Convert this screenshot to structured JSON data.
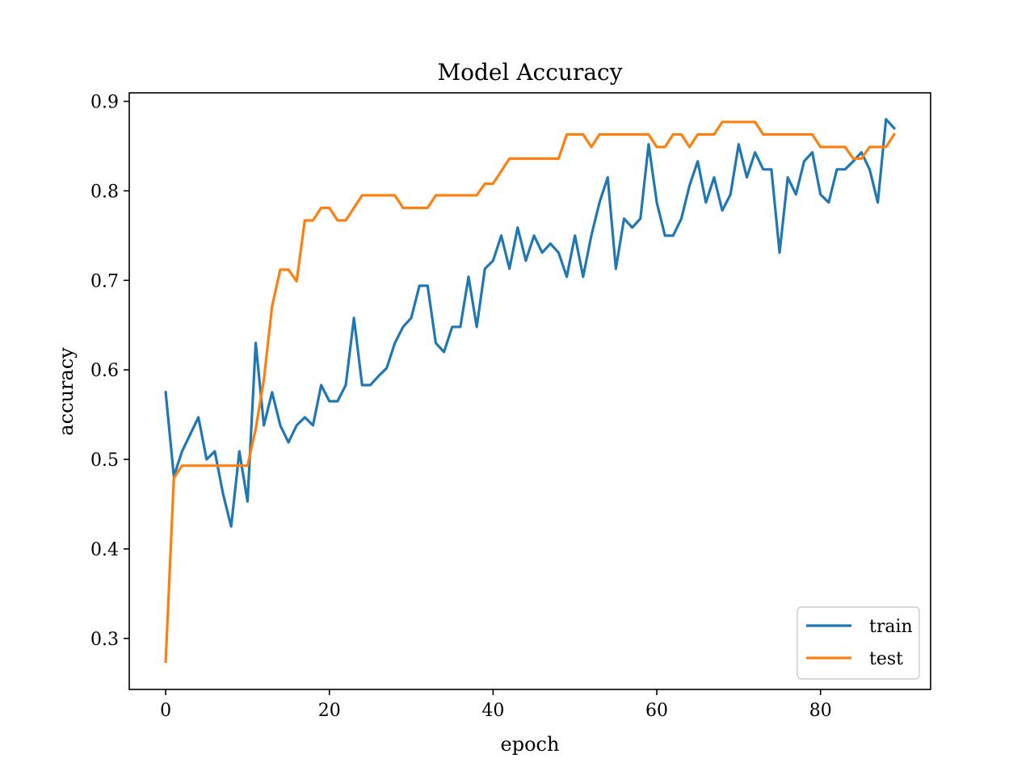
{
  "chart_data": {
    "type": "line",
    "title": "Model Accuracy",
    "xlabel": "epoch",
    "ylabel": "accuracy",
    "xlim": [
      -4.45,
      93.45
    ],
    "ylim": [
      0.243,
      0.9095
    ],
    "xticks": [
      0,
      20,
      40,
      60,
      80
    ],
    "yticks": [
      0.3,
      0.4,
      0.5,
      0.6,
      0.7,
      0.8,
      0.9
    ],
    "xtick_labels": [
      "0",
      "20",
      "40",
      "60",
      "80"
    ],
    "ytick_labels": [
      "0.3",
      "0.4",
      "0.5",
      "0.6",
      "0.7",
      "0.8",
      "0.9"
    ],
    "grid": false,
    "legend": "lower-right",
    "series": [
      {
        "name": "train",
        "color": "#1f77b4",
        "values": [
          0.575,
          0.481,
          0.509,
          0.528,
          0.547,
          0.5,
          0.509,
          0.462,
          0.425,
          0.509,
          0.453,
          0.63,
          0.538,
          0.575,
          0.538,
          0.519,
          0.538,
          0.547,
          0.538,
          0.583,
          0.565,
          0.565,
          0.583,
          0.658,
          0.583,
          0.583,
          0.593,
          0.602,
          0.63,
          0.648,
          0.658,
          0.694,
          0.694,
          0.63,
          0.62,
          0.648,
          0.648,
          0.704,
          0.648,
          0.713,
          0.722,
          0.75,
          0.713,
          0.759,
          0.722,
          0.75,
          0.731,
          0.741,
          0.731,
          0.704,
          0.75,
          0.704,
          0.75,
          0.787,
          0.815,
          0.713,
          0.769,
          0.759,
          0.769,
          0.852,
          0.787,
          0.75,
          0.75,
          0.769,
          0.806,
          0.833,
          0.787,
          0.815,
          0.778,
          0.796,
          0.852,
          0.815,
          0.843,
          0.824,
          0.824,
          0.731,
          0.815,
          0.796,
          0.833,
          0.843,
          0.796,
          0.787,
          0.824,
          0.824,
          0.833,
          0.843,
          0.824,
          0.787,
          0.88,
          0.87
        ]
      },
      {
        "name": "test",
        "color": "#ff7f0e",
        "values": [
          0.274,
          0.479,
          0.493,
          0.493,
          0.493,
          0.493,
          0.493,
          0.493,
          0.493,
          0.493,
          0.493,
          0.534,
          0.589,
          0.671,
          0.712,
          0.712,
          0.699,
          0.767,
          0.767,
          0.781,
          0.781,
          0.767,
          0.767,
          0.781,
          0.795,
          0.795,
          0.795,
          0.795,
          0.795,
          0.781,
          0.781,
          0.781,
          0.781,
          0.795,
          0.795,
          0.795,
          0.795,
          0.795,
          0.795,
          0.808,
          0.808,
          0.822,
          0.836,
          0.836,
          0.836,
          0.836,
          0.836,
          0.836,
          0.836,
          0.863,
          0.863,
          0.863,
          0.849,
          0.863,
          0.863,
          0.863,
          0.863,
          0.863,
          0.863,
          0.863,
          0.849,
          0.849,
          0.863,
          0.863,
          0.849,
          0.863,
          0.863,
          0.863,
          0.877,
          0.877,
          0.877,
          0.877,
          0.877,
          0.863,
          0.863,
          0.863,
          0.863,
          0.863,
          0.863,
          0.863,
          0.849,
          0.849,
          0.849,
          0.849,
          0.836,
          0.836,
          0.849,
          0.849,
          0.849,
          0.863
        ]
      }
    ]
  }
}
